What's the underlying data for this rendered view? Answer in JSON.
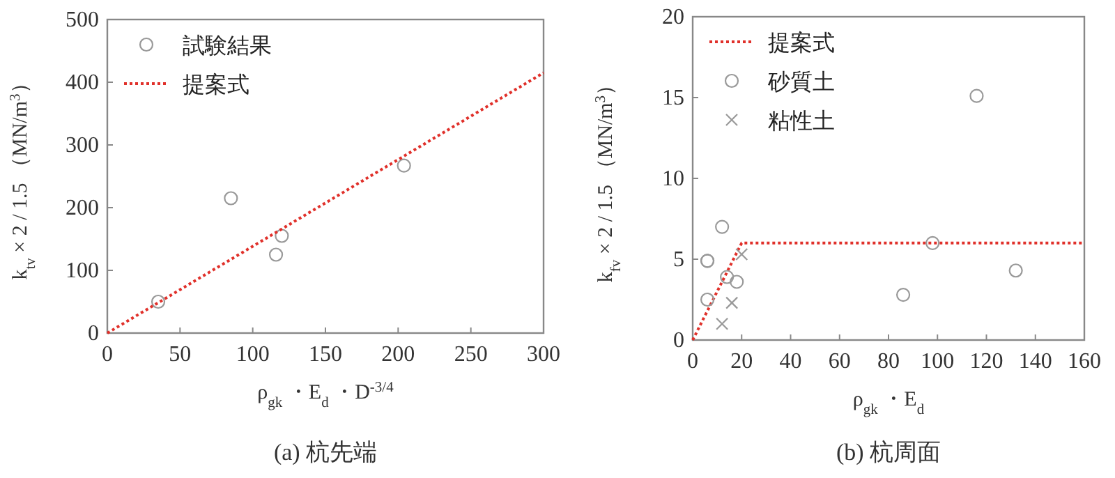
{
  "chart_data": [
    {
      "type": "scatter",
      "title": "(a) 杭先端",
      "xlabel": "ρ$_{gk}$ ・E$_{d}$ ・D$^{-3/4}$",
      "ylabel": "k$_{tv}$ × 2 / 1.5 （MN/m$^{3}$）",
      "xlim": [
        0,
        300
      ],
      "ylim": [
        0,
        500
      ],
      "xticks": [
        0,
        50,
        100,
        150,
        200,
        250,
        300
      ],
      "yticks": [
        0,
        100,
        200,
        300,
        400,
        500
      ],
      "legend": "top left",
      "series": [
        {
          "name": "試験結果",
          "type": "scatter",
          "marker": "circle",
          "color": "#999999",
          "x": [
            35,
            85,
            116,
            120,
            204
          ],
          "values": [
            50,
            215,
            125,
            155,
            267
          ]
        },
        {
          "name": "提案式",
          "type": "line",
          "marker": "none",
          "line_style": "dotted",
          "color": "#e0302a",
          "x": [
            0,
            300
          ],
          "values": [
            0,
            415
          ]
        }
      ]
    },
    {
      "type": "scatter",
      "title": "(b) 杭周面",
      "xlabel": "ρ$_{gk}$ ・E$_{d}$",
      "ylabel": "k$_{fv}$ × 2 / 1.5 （MN/m$^{3}$）",
      "xlim": [
        0,
        160
      ],
      "ylim": [
        0,
        20
      ],
      "xticks": [
        0,
        20,
        40,
        60,
        80,
        100,
        120,
        140,
        160
      ],
      "yticks": [
        0,
        5,
        10,
        15,
        20
      ],
      "legend": "top left",
      "series": [
        {
          "name": "提案式",
          "type": "line",
          "marker": "none",
          "line_style": "dotted",
          "color": "#e0302a",
          "x": [
            0,
            20,
            160
          ],
          "values": [
            0,
            6,
            6
          ]
        },
        {
          "name": "砂質土",
          "type": "scatter",
          "marker": "circle",
          "color": "#999999",
          "x": [
            6,
            6,
            6,
            12,
            14,
            18,
            86,
            98,
            116,
            132
          ],
          "values": [
            4.9,
            4.9,
            2.5,
            7,
            3.9,
            3.6,
            2.8,
            6,
            15.1,
            4.3
          ]
        },
        {
          "name": "粘性土",
          "type": "scatter",
          "marker": "cross",
          "color": "#999999",
          "x": [
            12,
            16,
            20
          ],
          "values": [
            1,
            2.3,
            5.3
          ]
        }
      ]
    }
  ]
}
